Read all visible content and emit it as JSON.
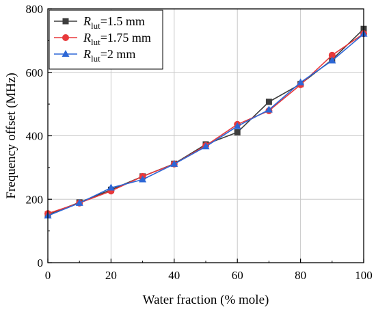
{
  "chart_data": {
    "type": "line",
    "xlabel": "Water fraction (% mole)",
    "ylabel": "Frequency offset (MHz)",
    "xlim": [
      0,
      100
    ],
    "ylim": [
      0,
      800
    ],
    "xticks": [
      "0",
      "20",
      "40",
      "60",
      "80",
      "100"
    ],
    "yticks": [
      "0",
      "200",
      "400",
      "600",
      "800"
    ],
    "grid": true,
    "legend_position": "top-left",
    "x": [
      0,
      10,
      20,
      30,
      40,
      50,
      60,
      70,
      80,
      90,
      100
    ],
    "series": [
      {
        "name": "R",
        "subscript": "lut",
        "suffix": "=1.5 mm",
        "color": "#3d3d3d",
        "marker": "square",
        "values": [
          152,
          190,
          230,
          272,
          312,
          373,
          411,
          507,
          563,
          640,
          737
        ]
      },
      {
        "name": "R",
        "subscript": "lut",
        "suffix": "=1.75 mm",
        "color": "#e8393b",
        "marker": "circle",
        "values": [
          155,
          188,
          226,
          272,
          311,
          369,
          436,
          479,
          561,
          654,
          722
        ]
      },
      {
        "name": "R",
        "subscript": "lut",
        "suffix": "=2 mm",
        "color": "#2d67d6",
        "marker": "triangle",
        "values": [
          148,
          188,
          236,
          262,
          311,
          366,
          430,
          482,
          568,
          637,
          721
        ]
      }
    ]
  }
}
